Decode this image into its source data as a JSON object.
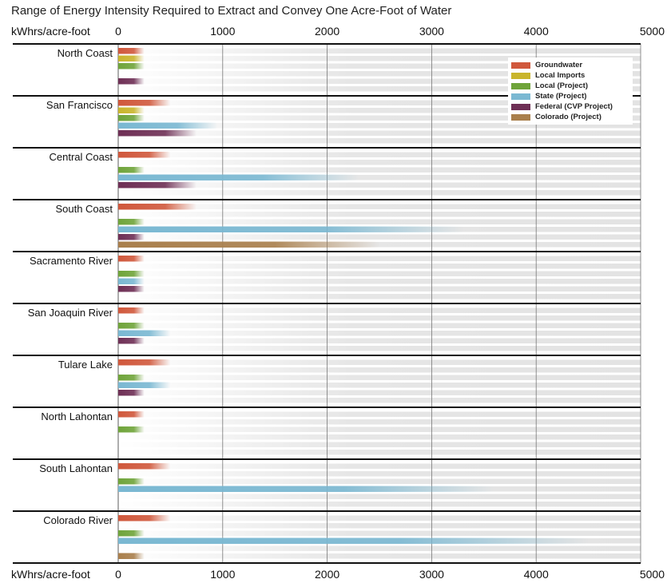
{
  "chart_data": {
    "type": "bar",
    "title": "Range of Energy Intensity Required to Extract and Convey One Acre-Foot of Water",
    "unit_label": "kWhrs/acre-foot",
    "xlim": [
      0,
      5000
    ],
    "xticks": [
      "0",
      "1000",
      "2000",
      "3000",
      "4000",
      "5000"
    ],
    "grid": true,
    "legend_position": "top-right",
    "series": [
      {
        "name": "Groundwater",
        "color": "#d0583c"
      },
      {
        "name": "Local Imports",
        "color": "#c9b52c"
      },
      {
        "name": "Local (Project)",
        "color": "#6fa43a"
      },
      {
        "name": "State (Project)",
        "color": "#7ab8d2"
      },
      {
        "name": "Federal (CVP Project)",
        "color": "#6e2f55"
      },
      {
        "name": "Colorado (Project)",
        "color": "#a97f4c"
      }
    ],
    "categories": [
      {
        "name": "North Coast",
        "bars": [
          {
            "series": 0,
            "min": 0,
            "max": 250
          },
          {
            "series": 1,
            "min": 0,
            "max": 250
          },
          {
            "series": 2,
            "min": 0,
            "max": 250
          },
          {
            "series": 4,
            "min": 0,
            "max": 250
          }
        ]
      },
      {
        "name": "San Francisco",
        "bars": [
          {
            "series": 0,
            "min": 0,
            "max": 500
          },
          {
            "series": 1,
            "min": 0,
            "max": 250
          },
          {
            "series": 2,
            "min": 0,
            "max": 250
          },
          {
            "series": 3,
            "min": 0,
            "max": 950
          },
          {
            "series": 4,
            "min": 0,
            "max": 750
          }
        ]
      },
      {
        "name": "Central Coast",
        "bars": [
          {
            "series": 0,
            "min": 0,
            "max": 500
          },
          {
            "series": 2,
            "min": 0,
            "max": 250
          },
          {
            "series": 3,
            "min": 0,
            "max": 2300
          },
          {
            "series": 4,
            "min": 0,
            "max": 750
          }
        ]
      },
      {
        "name": "South Coast",
        "bars": [
          {
            "series": 0,
            "min": 0,
            "max": 750
          },
          {
            "series": 2,
            "min": 0,
            "max": 250
          },
          {
            "series": 3,
            "min": 0,
            "max": 3300
          },
          {
            "series": 4,
            "min": 0,
            "max": 250
          },
          {
            "series": 5,
            "min": 0,
            "max": 2500
          }
        ]
      },
      {
        "name": "Sacramento River",
        "bars": [
          {
            "series": 0,
            "min": 0,
            "max": 250
          },
          {
            "series": 2,
            "min": 0,
            "max": 250
          },
          {
            "series": 3,
            "min": 0,
            "max": 250
          },
          {
            "series": 4,
            "min": 0,
            "max": 250
          }
        ]
      },
      {
        "name": "San Joaquin River",
        "bars": [
          {
            "series": 0,
            "min": 0,
            "max": 250
          },
          {
            "series": 2,
            "min": 0,
            "max": 250
          },
          {
            "series": 3,
            "min": 0,
            "max": 500
          },
          {
            "series": 4,
            "min": 0,
            "max": 250
          }
        ]
      },
      {
        "name": "Tulare Lake",
        "bars": [
          {
            "series": 0,
            "min": 0,
            "max": 500
          },
          {
            "series": 2,
            "min": 0,
            "max": 250
          },
          {
            "series": 3,
            "min": 0,
            "max": 500
          },
          {
            "series": 4,
            "min": 0,
            "max": 250
          }
        ]
      },
      {
        "name": "North Lahontan",
        "bars": [
          {
            "series": 0,
            "min": 0,
            "max": 250
          },
          {
            "series": 2,
            "min": 0,
            "max": 250
          }
        ]
      },
      {
        "name": "South Lahontan",
        "bars": [
          {
            "series": 0,
            "min": 0,
            "max": 500
          },
          {
            "series": 2,
            "min": 0,
            "max": 250
          },
          {
            "series": 3,
            "min": 0,
            "max": 3600
          }
        ]
      },
      {
        "name": "Colorado River",
        "bars": [
          {
            "series": 0,
            "min": 0,
            "max": 500
          },
          {
            "series": 2,
            "min": 0,
            "max": 250
          },
          {
            "series": 3,
            "min": 0,
            "max": 4500
          },
          {
            "series": 5,
            "min": 0,
            "max": 250
          }
        ]
      }
    ]
  }
}
